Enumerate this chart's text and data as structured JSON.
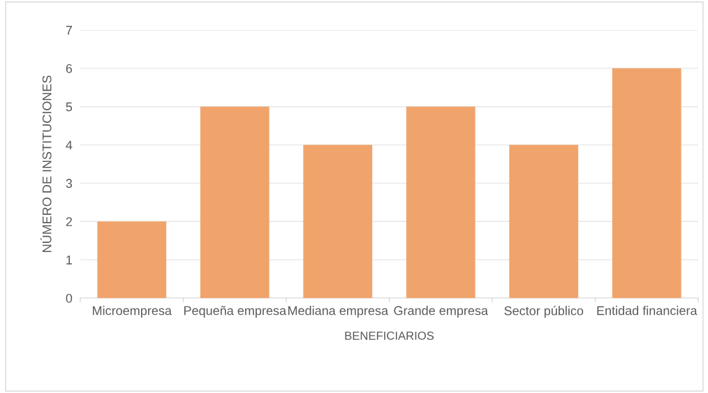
{
  "chart_data": {
    "type": "bar",
    "xlabel": "BENEFICIARIOS",
    "ylabel": "NÚMERO DE INSTITUCIONES",
    "categories": [
      "Microempresa",
      "Pequeña empresa",
      "Mediana empresa",
      "Grande empresa",
      "Sector público",
      "Entidad financiera"
    ],
    "values": [
      2,
      5,
      4,
      5,
      4,
      6
    ],
    "color": "#f0a46c",
    "ylim": [
      0,
      7
    ],
    "yticks": [
      0,
      1,
      2,
      3,
      4,
      5,
      6,
      7
    ],
    "grid": "y"
  }
}
